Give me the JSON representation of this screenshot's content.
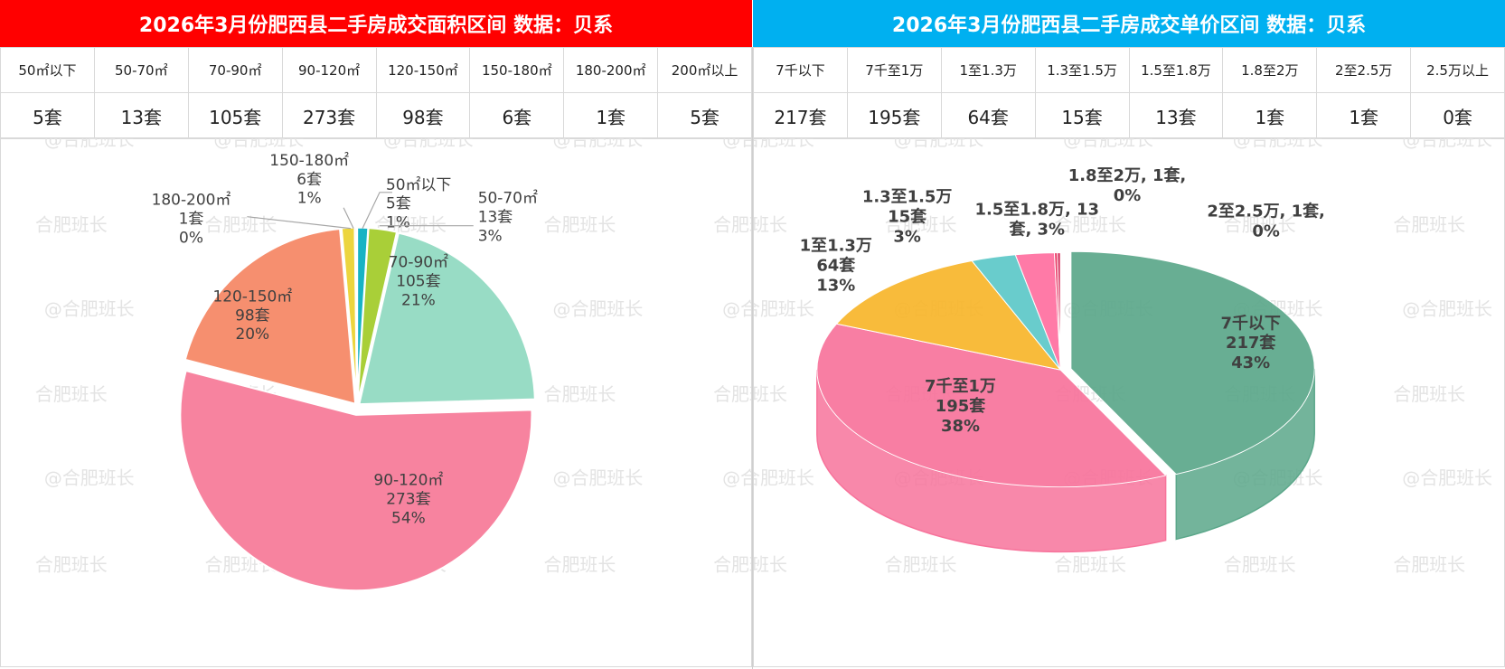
{
  "left": {
    "title": "2026年3月份肥西县二手房成交面积区间 数据：贝系",
    "table": [
      {
        "label": "50㎡以下",
        "value": "5套"
      },
      {
        "label": "50-70㎡",
        "value": "13套"
      },
      {
        "label": "70-90㎡",
        "value": "105套"
      },
      {
        "label": "90-120㎡",
        "value": "273套"
      },
      {
        "label": "120-150㎡",
        "value": "98套"
      },
      {
        "label": "150-180㎡",
        "value": "6套"
      },
      {
        "label": "180-200㎡",
        "value": "1套"
      },
      {
        "label": "200㎡以上",
        "value": "5套"
      }
    ]
  },
  "right": {
    "title": "2026年3月份肥西县二手房成交单价区间 数据：贝系",
    "table": [
      {
        "label": "7千以下",
        "value": "217套"
      },
      {
        "label": "7千至1万",
        "value": "195套"
      },
      {
        "label": "1至1.3万",
        "value": "64套"
      },
      {
        "label": "1.3至1.5万",
        "value": "15套"
      },
      {
        "label": "1.5至1.8万",
        "value": "13套"
      },
      {
        "label": "1.8至2万",
        "value": "1套"
      },
      {
        "label": "2至2.5万",
        "value": "1套"
      },
      {
        "label": "2.5万以上",
        "value": "0套"
      }
    ]
  },
  "watermark": "@合肥班长",
  "watermark_alt": "合肥班长",
  "chart_data": [
    {
      "type": "pie",
      "title": "",
      "labels": [
        "50㎡以下",
        "50-70㎡",
        "70-90㎡",
        "90-120㎡",
        "120-150㎡",
        "150-180㎡",
        "180-200㎡"
      ],
      "values": [
        5,
        13,
        105,
        273,
        98,
        6,
        1
      ],
      "counts": [
        "5套",
        "13套",
        "105套",
        "273套",
        "98套",
        "6套",
        "1套"
      ],
      "percents": [
        "1%",
        "3%",
        "21%",
        "54%",
        "20%",
        "1%",
        "0%"
      ],
      "colors": [
        "#17b3c4",
        "#a9cf38",
        "#98dcc5",
        "#f7839f",
        "#f68f6f",
        "#ecd53e",
        "#f3f3f3"
      ],
      "exploded": "90-120㎡"
    },
    {
      "type": "pie",
      "title": "",
      "style": "3d",
      "labels": [
        "7千以下",
        "7千至1万",
        "1至1.3万",
        "1.3至1.5万",
        "1.5至1.8万",
        "1.8至2万",
        "2至2.5万"
      ],
      "values": [
        217,
        195,
        64,
        15,
        13,
        1,
        1
      ],
      "counts": [
        "217套",
        "195套",
        "64套",
        "15套",
        "13套",
        "1套",
        "1套"
      ],
      "percents": [
        "43%",
        "38%",
        "13%",
        "3%",
        "3%",
        "0%",
        "0%"
      ],
      "colors": [
        "#5ba78a",
        "#f7739b",
        "#f7b52a",
        "#5cc8c8",
        "#ff6fa0",
        "#e8335f",
        "#d02050"
      ],
      "exploded": "7千以下"
    }
  ]
}
